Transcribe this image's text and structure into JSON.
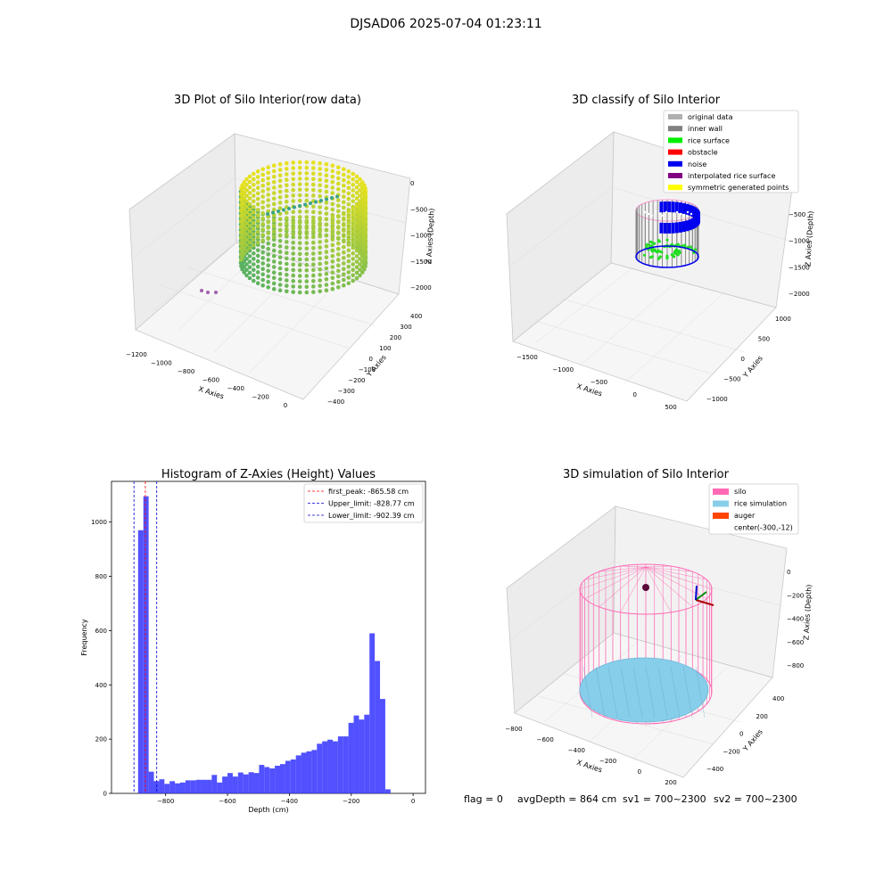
{
  "suptitle": "DJSAD06 2025-07-04 01:23:11",
  "panels": {
    "raw": {
      "title": "3D Plot of Silo Interior(row data)",
      "xlabel": "X Axies",
      "ylabel": "Y Axies",
      "zlabel": "Z Axies (Depth)",
      "xticks": [
        "−1200",
        "−1000",
        "−800",
        "−600",
        "−400",
        "−200",
        "0"
      ],
      "yticks": [
        "400",
        "300",
        "200",
        "100",
        "0",
        "−100",
        "−200",
        "−300",
        "−400"
      ],
      "zticks": [
        "0",
        "−500",
        "−1000",
        "−1500",
        "−2000"
      ]
    },
    "classify": {
      "title": "3D classify of Silo Interior",
      "xlabel": "X Axies",
      "ylabel": "Y Axies",
      "zlabel": "Z Axies (Depth)",
      "xticks": [
        "−1500",
        "−1000",
        "−500",
        "0",
        "500"
      ],
      "yticks": [
        "1000",
        "500",
        "0",
        "−500",
        "−1000"
      ],
      "zticks": [
        "−500",
        "−1000",
        "−1500",
        "−2000"
      ],
      "legend": [
        {
          "label": "original data",
          "color": "#b0b0b0"
        },
        {
          "label": "inner wall",
          "color": "#808080"
        },
        {
          "label": "rice surface",
          "color": "#00ee00"
        },
        {
          "label": "obstacle",
          "color": "#ff0000"
        },
        {
          "label": "noise",
          "color": "#0000ee"
        },
        {
          "label": "interpolated rice surface",
          "color": "#800080"
        },
        {
          "label": "symmetric generated points",
          "color": "#ffff00"
        }
      ]
    },
    "simulation": {
      "title": "3D simulation of Silo Interior",
      "xlabel": "X Axies",
      "ylabel": "Y Axies",
      "zlabel": "Z Axies (Depth)",
      "xticks": [
        "−800",
        "−600",
        "−400",
        "−200",
        "0",
        "200"
      ],
      "yticks": [
        "400",
        "200",
        "0",
        "−200",
        "−400"
      ],
      "zticks": [
        "0",
        "−200",
        "−400",
        "−600",
        "−800"
      ],
      "legend": [
        {
          "label": "silo",
          "color": "#ff69b4"
        },
        {
          "label": "rice simulation",
          "color": "#87ceeb"
        },
        {
          "label": "auger",
          "color": "#ff4500"
        },
        {
          "label": "center(-300,-12)",
          "color": ""
        }
      ]
    }
  },
  "chart_data": {
    "type": "bar",
    "title": "Histogram of Z-Axies (Height) Values",
    "xlabel": "Depth (cm)",
    "ylabel": "Frequency",
    "xlim": [
      -975,
      40
    ],
    "ylim": [
      0,
      1150
    ],
    "xticks": [
      -800,
      -600,
      -400,
      -200,
      0
    ],
    "xtick_labels": [
      "−800",
      "−600",
      "−400",
      "−200",
      "0"
    ],
    "yticks": [
      0,
      200,
      400,
      600,
      800,
      1000
    ],
    "bin_width": 17,
    "bins_start": -889,
    "values": [
      970,
      1095,
      80,
      45,
      52,
      35,
      45,
      37,
      40,
      48,
      48,
      50,
      50,
      50,
      68,
      40,
      62,
      75,
      62,
      77,
      70,
      78,
      75,
      105,
      97,
      92,
      102,
      108,
      120,
      125,
      140,
      150,
      155,
      160,
      183,
      192,
      198,
      192,
      210,
      210,
      260,
      287,
      272,
      290,
      590,
      488,
      348,
      15
    ],
    "color": "#3333ff",
    "lines": [
      {
        "name": "first_peak: -865.58 cm",
        "x": -865.58,
        "color": "#ff0000"
      },
      {
        "name": "Upper_limit: -828.77 cm",
        "x": -828.77,
        "color": "#0000cc"
      },
      {
        "name": "Lower_limit: -902.39 cm",
        "x": -902.39,
        "color": "#0000cc"
      }
    ],
    "legend_position": "upper right"
  },
  "footer": {
    "flag": "flag = 0",
    "avg": "avgDepth = 864 cm",
    "sv1": "sv1 = 700~2300",
    "sv2": "sv2 = 700~2300"
  }
}
